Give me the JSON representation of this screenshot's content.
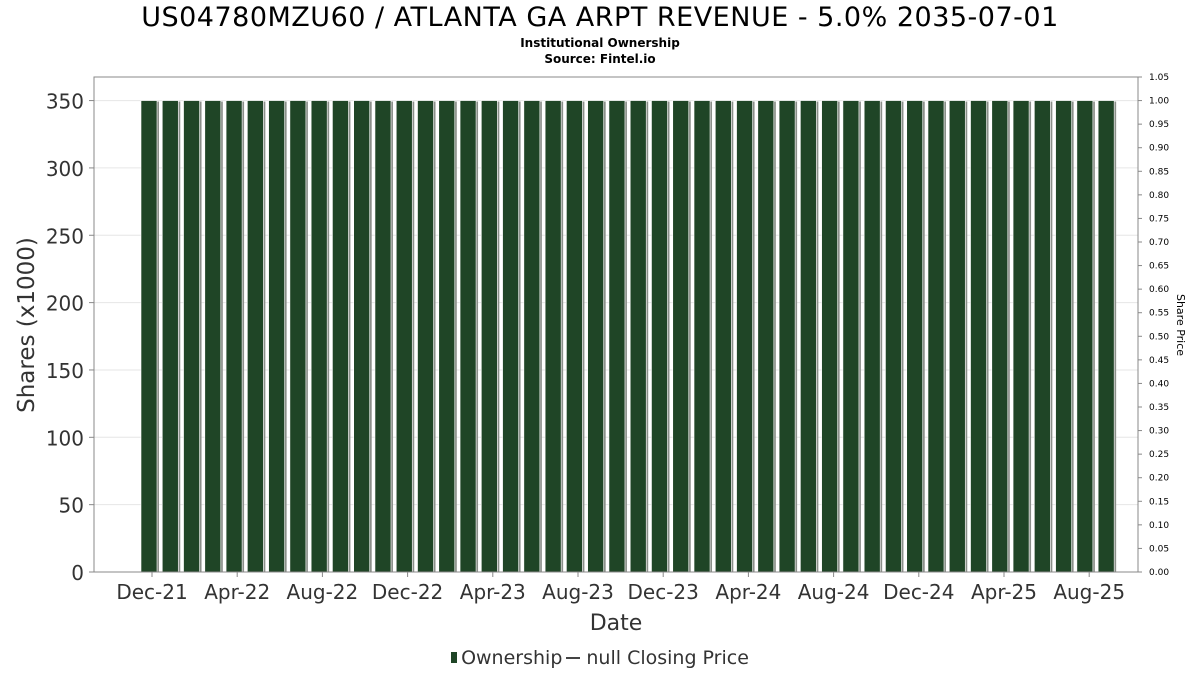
{
  "chart": {
    "title": "US04780MZU60 / ATLANTA GA ARPT REVENUE - 5.0% 2035-07-01",
    "subtitle_1": "Institutional Ownership",
    "subtitle_2": "Source: Fintel.io"
  },
  "legend": {
    "ownership_label": "Ownership",
    "price_label": "null Closing Price"
  },
  "colors": {
    "bar_fill": "#1f4526",
    "bar_shadow": "#8a8f89",
    "grid": "#e6e6e6",
    "axis": "#888888"
  },
  "chart_data": {
    "type": "bar",
    "title": "US04780MZU60 / ATLANTA GA ARPT REVENUE - 5.0% 2035-07-01",
    "subtitle": "Institutional Ownership",
    "xlabel": "Date",
    "ylabel": "Shares (x1000)",
    "y2label": "Share Price",
    "ylim": [
      0,
      350
    ],
    "y_ticks": [
      0,
      50,
      100,
      150,
      200,
      250,
      300,
      350
    ],
    "y2lim": [
      0,
      1.05
    ],
    "y2_ticks": [
      "0.00",
      "0.05",
      "0.10",
      "0.15",
      "0.20",
      "0.25",
      "0.30",
      "0.35",
      "0.40",
      "0.45",
      "0.50",
      "0.55",
      "0.60",
      "0.65",
      "0.70",
      "0.75",
      "0.80",
      "0.85",
      "0.90",
      "0.95",
      "1.00",
      "1.05"
    ],
    "x_tick_labels": [
      "Dec-21",
      "Apr-22",
      "Aug-22",
      "Dec-22",
      "Apr-23",
      "Aug-23",
      "Dec-23",
      "Apr-24",
      "Aug-24",
      "Dec-24",
      "Apr-25",
      "Aug-25"
    ],
    "grid": true,
    "legend_position": "bottom",
    "series": [
      {
        "name": "Ownership",
        "values": [
          350,
          350,
          350,
          350,
          350,
          350,
          350,
          350,
          350,
          350,
          350,
          350,
          350,
          350,
          350,
          350,
          350,
          350,
          350,
          350,
          350,
          350,
          350,
          350,
          350,
          350,
          350,
          350,
          350,
          350,
          350,
          350,
          350,
          350,
          350,
          350,
          350,
          350,
          350,
          350,
          350,
          350,
          350,
          350,
          350,
          350
        ]
      }
    ]
  }
}
